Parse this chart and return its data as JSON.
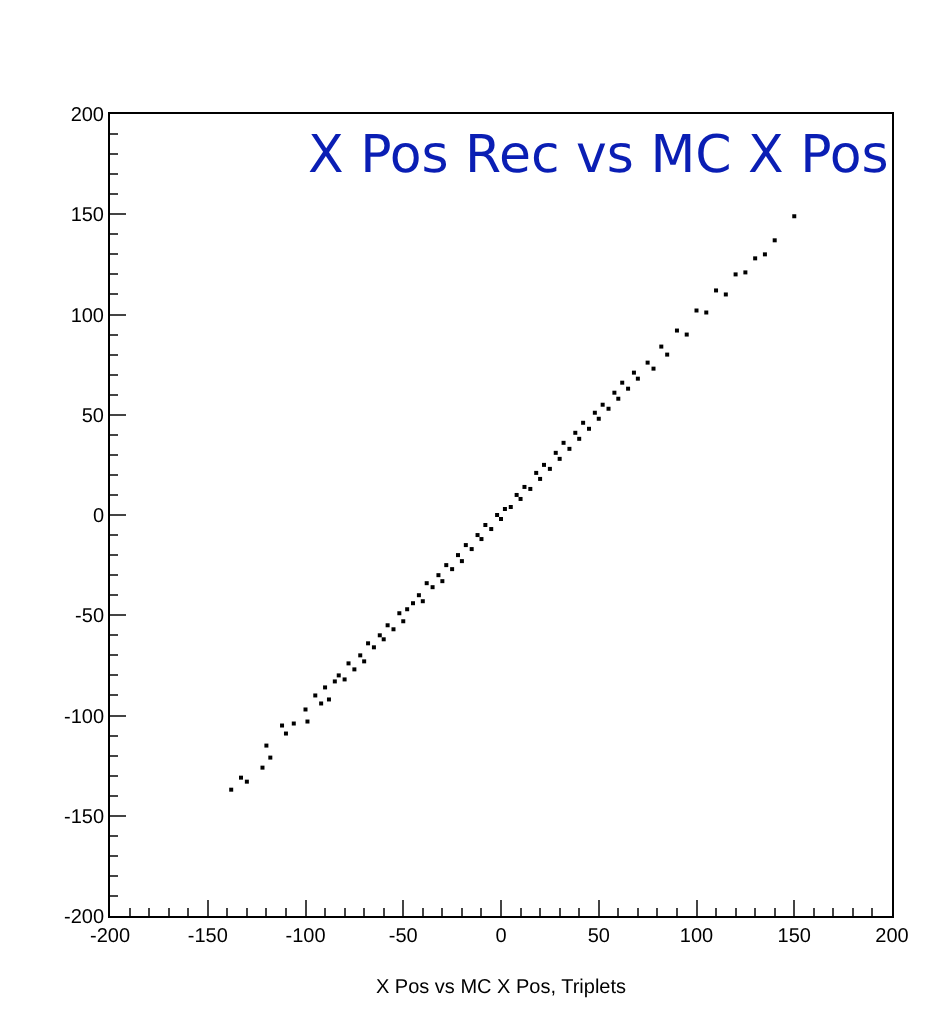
{
  "chart_data": {
    "type": "scatter",
    "title": "X Pos Rec vs MC X Pos",
    "xlabel": "X Pos vs MC X Pos, Triplets",
    "x": [
      -138,
      -133,
      -130,
      -122,
      -120,
      -118,
      -112,
      -110,
      -106,
      -100,
      -99,
      -95,
      -92,
      -90,
      -88,
      -85,
      -83,
      -80,
      -78,
      -75,
      -72,
      -70,
      -68,
      -65,
      -62,
      -60,
      -58,
      -55,
      -52,
      -50,
      -48,
      -45,
      -42,
      -40,
      -38,
      -35,
      -32,
      -30,
      -28,
      -25,
      -22,
      -20,
      -18,
      -15,
      -12,
      -10,
      -8,
      -5,
      -2,
      0,
      2,
      5,
      8,
      10,
      12,
      15,
      18,
      20,
      22,
      25,
      28,
      30,
      32,
      35,
      38,
      40,
      42,
      45,
      48,
      50,
      52,
      55,
      58,
      60,
      62,
      65,
      68,
      70,
      75,
      78,
      82,
      85,
      90,
      95,
      100,
      105,
      110,
      115,
      120,
      125,
      130,
      135,
      140,
      150
    ],
    "values": [
      -137,
      -131,
      -133,
      -126,
      -115,
      -121,
      -105,
      -109,
      -104,
      -97,
      -103,
      -90,
      -94,
      -86,
      -92,
      -83,
      -80,
      -82,
      -74,
      -77,
      -70,
      -73,
      -64,
      -66,
      -60,
      -62,
      -55,
      -57,
      -49,
      -53,
      -47,
      -44,
      -40,
      -43,
      -34,
      -36,
      -30,
      -33,
      -25,
      -27,
      -20,
      -23,
      -15,
      -17,
      -10,
      -12,
      -5,
      -7,
      0,
      -2,
      3,
      4,
      10,
      8,
      14,
      13,
      21,
      18,
      25,
      23,
      31,
      28,
      36,
      33,
      41,
      38,
      46,
      43,
      51,
      48,
      55,
      53,
      61,
      58,
      66,
      63,
      71,
      68,
      76,
      73,
      84,
      80,
      92,
      90,
      102,
      101,
      112,
      110,
      120,
      121,
      128,
      130,
      137,
      149
    ],
    "xlim": [
      -200,
      200
    ],
    "ylim": [
      -200,
      200
    ],
    "xticks": [
      -200,
      -150,
      -100,
      -50,
      0,
      50,
      100,
      150,
      200
    ],
    "yticks": [
      -200,
      -150,
      -100,
      -50,
      0,
      50,
      100,
      150,
      200
    ],
    "color": "#000000",
    "marker": "square",
    "legend": false
  }
}
